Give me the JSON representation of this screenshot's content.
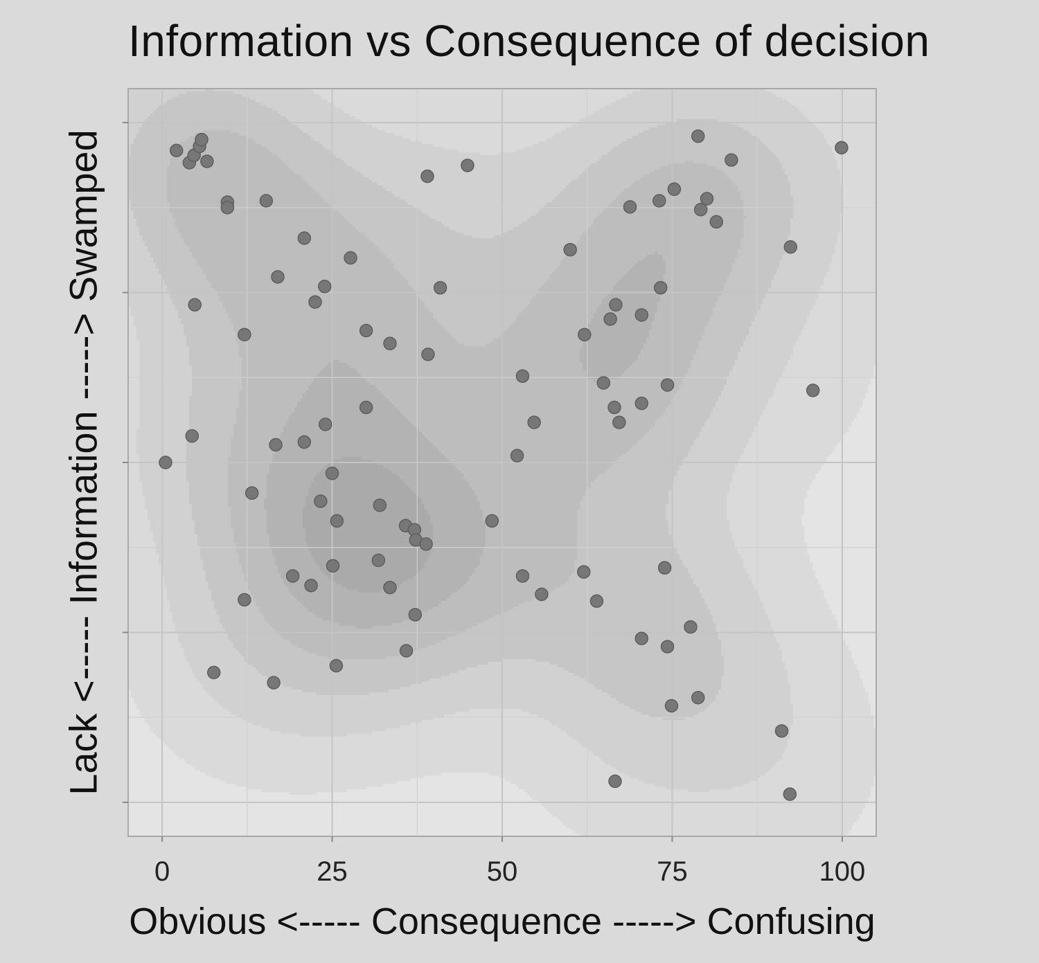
{
  "chart_data": {
    "type": "scatter",
    "title": "Information vs Consequence of decision",
    "xlabel": "Obvious <----- Consequence -----> Confusing",
    "ylabel": "Lack <----- Information -----> Swamped",
    "xlim": [
      -5,
      105
    ],
    "ylim": [
      -5,
      105
    ],
    "x_ticks": [
      "0",
      "25",
      "50",
      "75",
      "100"
    ],
    "y_ticks": [],
    "grid": true,
    "overlay": "2d density contours (filled, grayscale)",
    "colors": {
      "panel": "#e4e4e4",
      "point": "#777777",
      "point_edge": "#5e5e5e",
      "density": "#8a8a8a"
    },
    "points": [
      [
        2.1,
        95.9
      ],
      [
        4.0,
        94.1
      ],
      [
        4.7,
        95.2
      ],
      [
        5.5,
        96.5
      ],
      [
        5.8,
        97.5
      ],
      [
        6.6,
        94.3
      ],
      [
        9.6,
        88.3
      ],
      [
        9.6,
        87.5
      ],
      [
        15.3,
        88.5
      ],
      [
        20.9,
        83.0
      ],
      [
        27.7,
        80.1
      ],
      [
        17.0,
        77.3
      ],
      [
        23.9,
        75.9
      ],
      [
        22.5,
        73.6
      ],
      [
        4.8,
        73.2
      ],
      [
        12.1,
        68.8
      ],
      [
        30.0,
        69.4
      ],
      [
        33.5,
        67.5
      ],
      [
        39.1,
        65.9
      ],
      [
        39.0,
        92.1
      ],
      [
        44.9,
        93.7
      ],
      [
        40.9,
        75.7
      ],
      [
        30.0,
        58.1
      ],
      [
        24.0,
        55.6
      ],
      [
        20.9,
        53.0
      ],
      [
        16.7,
        52.6
      ],
      [
        4.4,
        53.9
      ],
      [
        0.5,
        50.0
      ],
      [
        25.0,
        48.4
      ],
      [
        13.2,
        45.5
      ],
      [
        23.3,
        44.3
      ],
      [
        32.0,
        43.7
      ],
      [
        25.7,
        41.4
      ],
      [
        35.8,
        40.7
      ],
      [
        37.1,
        40.1
      ],
      [
        37.3,
        38.6
      ],
      [
        38.8,
        38.0
      ],
      [
        48.5,
        41.4
      ],
      [
        31.8,
        35.6
      ],
      [
        25.1,
        34.8
      ],
      [
        19.2,
        33.3
      ],
      [
        21.9,
        31.9
      ],
      [
        33.5,
        31.6
      ],
      [
        12.1,
        29.8
      ],
      [
        37.2,
        27.6
      ],
      [
        35.9,
        22.3
      ],
      [
        25.6,
        20.1
      ],
      [
        7.6,
        19.1
      ],
      [
        16.4,
        17.6
      ],
      [
        60.0,
        81.3
      ],
      [
        68.8,
        87.6
      ],
      [
        73.1,
        88.5
      ],
      [
        75.3,
        90.2
      ],
      [
        78.8,
        98.0
      ],
      [
        83.7,
        94.5
      ],
      [
        80.1,
        88.8
      ],
      [
        79.2,
        87.2
      ],
      [
        81.5,
        85.4
      ],
      [
        92.4,
        81.7
      ],
      [
        99.9,
        96.3
      ],
      [
        73.3,
        75.7
      ],
      [
        66.7,
        73.2
      ],
      [
        65.9,
        71.1
      ],
      [
        70.5,
        71.7
      ],
      [
        62.1,
        68.8
      ],
      [
        53.0,
        62.7
      ],
      [
        64.9,
        61.7
      ],
      [
        74.3,
        61.4
      ],
      [
        70.5,
        58.7
      ],
      [
        66.5,
        58.1
      ],
      [
        67.2,
        55.9
      ],
      [
        54.7,
        55.9
      ],
      [
        52.2,
        51.0
      ],
      [
        95.7,
        60.6
      ],
      [
        53.0,
        33.3
      ],
      [
        62.0,
        33.9
      ],
      [
        55.8,
        30.6
      ],
      [
        63.9,
        29.6
      ],
      [
        73.9,
        34.5
      ],
      [
        77.7,
        25.8
      ],
      [
        70.5,
        24.1
      ],
      [
        74.3,
        22.9
      ],
      [
        74.9,
        14.2
      ],
      [
        78.8,
        15.4
      ],
      [
        91.1,
        10.5
      ],
      [
        66.6,
        3.1
      ],
      [
        92.3,
        1.2
      ]
    ]
  }
}
